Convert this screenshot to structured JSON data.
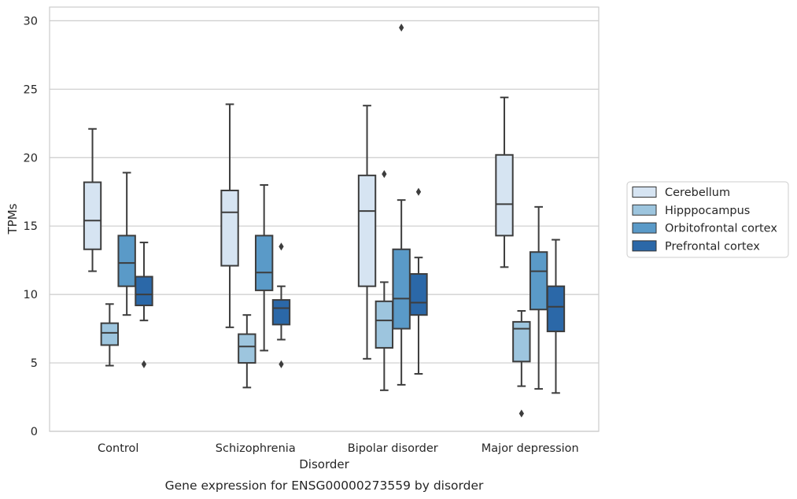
{
  "chart_data": {
    "type": "boxplot",
    "title": "Gene expression for ENSG00000273559 by disorder",
    "xlabel": "Disorder",
    "ylabel": "TPMs",
    "ylim": [
      0,
      31
    ],
    "yticks": [
      0,
      5,
      10,
      15,
      20,
      25,
      30
    ],
    "grid": "horizontal",
    "legend_position": "right",
    "categories": [
      "Control",
      "Schizophrenia",
      "Bipolar disorder",
      "Major depression"
    ],
    "series": [
      {
        "name": "Cerebellum",
        "color": "#d6e4f2",
        "boxes": [
          {
            "whislo": 11.7,
            "q1": 13.3,
            "med": 15.4,
            "q3": 18.2,
            "whishi": 22.1,
            "fliers": []
          },
          {
            "whislo": 7.6,
            "q1": 12.1,
            "med": 16.0,
            "q3": 17.6,
            "whishi": 23.9,
            "fliers": []
          },
          {
            "whislo": 5.3,
            "q1": 10.6,
            "med": 16.1,
            "q3": 18.7,
            "whishi": 23.8,
            "fliers": []
          },
          {
            "whislo": 12.0,
            "q1": 14.3,
            "med": 16.6,
            "q3": 20.2,
            "whishi": 24.4,
            "fliers": []
          }
        ]
      },
      {
        "name": "Hipppocampus",
        "color": "#9dc5de",
        "boxes": [
          {
            "whislo": 4.8,
            "q1": 6.3,
            "med": 7.2,
            "q3": 7.9,
            "whishi": 9.3,
            "fliers": []
          },
          {
            "whislo": 3.2,
            "q1": 5.0,
            "med": 6.2,
            "q3": 7.1,
            "whishi": 8.5,
            "fliers": []
          },
          {
            "whislo": 3.0,
            "q1": 6.1,
            "med": 8.1,
            "q3": 9.5,
            "whishi": 10.9,
            "fliers": [
              18.8
            ]
          },
          {
            "whislo": 3.3,
            "q1": 5.1,
            "med": 7.5,
            "q3": 8.0,
            "whishi": 8.8,
            "fliers": [
              1.3
            ]
          }
        ]
      },
      {
        "name": "Orbitofrontal cortex",
        "color": "#5a9ac8",
        "boxes": [
          {
            "whislo": 8.5,
            "q1": 10.6,
            "med": 12.3,
            "q3": 14.3,
            "whishi": 18.9,
            "fliers": []
          },
          {
            "whislo": 5.9,
            "q1": 10.3,
            "med": 11.6,
            "q3": 14.3,
            "whishi": 18.0,
            "fliers": []
          },
          {
            "whislo": 3.4,
            "q1": 7.5,
            "med": 9.7,
            "q3": 13.3,
            "whishi": 16.9,
            "fliers": [
              29.5
            ]
          },
          {
            "whislo": 3.1,
            "q1": 8.9,
            "med": 11.7,
            "q3": 13.1,
            "whishi": 16.4,
            "fliers": []
          }
        ]
      },
      {
        "name": "Prefrontal cortex",
        "color": "#2b68a8",
        "boxes": [
          {
            "whislo": 8.1,
            "q1": 9.2,
            "med": 10.0,
            "q3": 11.3,
            "whishi": 13.8,
            "fliers": [
              4.9
            ]
          },
          {
            "whislo": 6.7,
            "q1": 7.8,
            "med": 9.0,
            "q3": 9.6,
            "whishi": 10.6,
            "fliers": [
              13.5,
              4.9
            ]
          },
          {
            "whislo": 4.2,
            "q1": 8.5,
            "med": 9.4,
            "q3": 11.5,
            "whishi": 12.7,
            "fliers": [
              17.5
            ]
          },
          {
            "whislo": 2.8,
            "q1": 7.3,
            "med": 9.1,
            "q3": 10.6,
            "whishi": 14.0,
            "fliers": []
          }
        ]
      }
    ]
  }
}
